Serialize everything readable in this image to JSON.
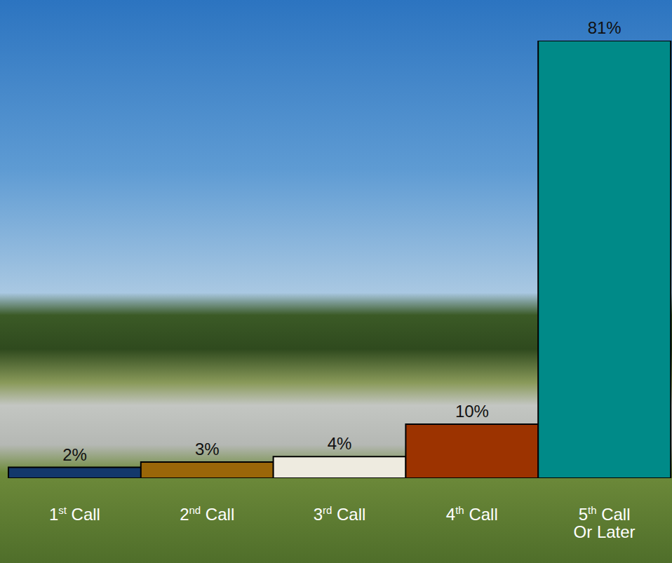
{
  "chart_data": {
    "type": "bar",
    "categories": [
      "1st Call",
      "2nd Call",
      "3rd Call",
      "4th Call",
      "5th Call Or Later"
    ],
    "values": [
      2,
      3,
      4,
      10,
      81
    ],
    "value_labels": [
      "2%",
      "3%",
      "4%",
      "10%",
      "81%"
    ],
    "colors": [
      "#13386b",
      "#9a6608",
      "#eeebe0",
      "#9c3300",
      "#008a88"
    ],
    "ylim": [
      0,
      81
    ],
    "data_labels": true,
    "tick_labels": "x",
    "grid": false
  }
}
